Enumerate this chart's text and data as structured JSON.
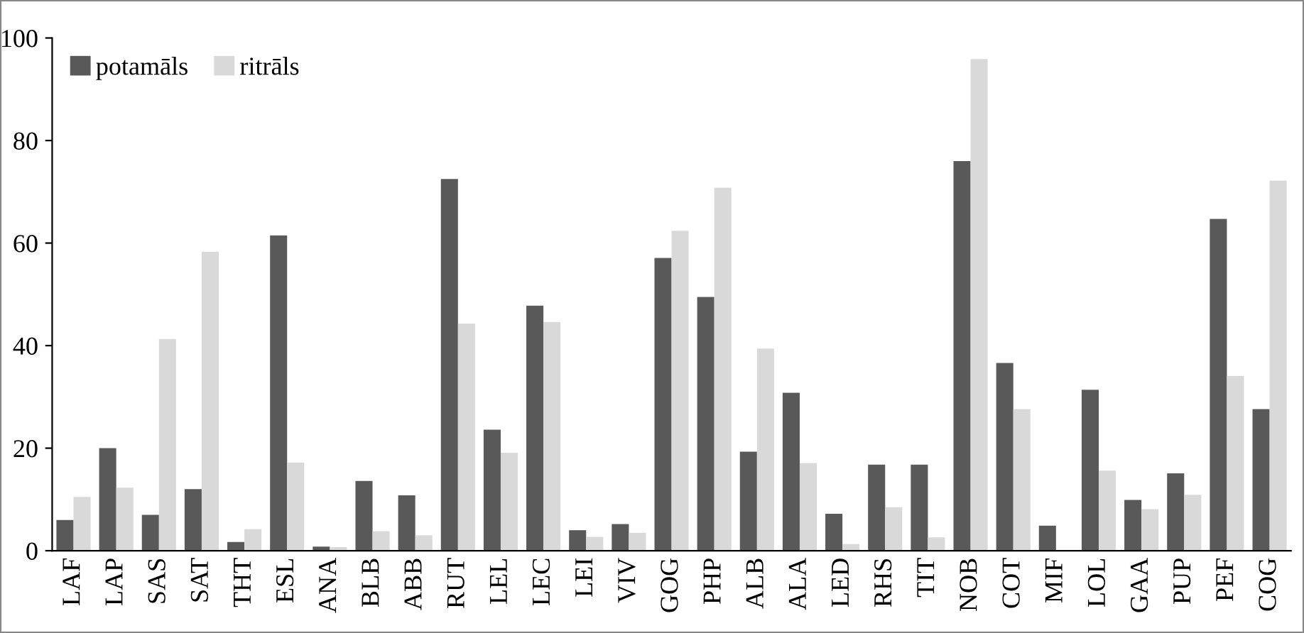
{
  "chart_data": {
    "type": "bar",
    "categories": [
      "LAF",
      "LAP",
      "SAS",
      "SAT",
      "THT",
      "ESL",
      "ANA",
      "BLB",
      "ABB",
      "RUT",
      "LEL",
      "LEC",
      "LEI",
      "VIV",
      "GOG",
      "PHP",
      "ALB",
      "ALA",
      "LED",
      "RHS",
      "TIT",
      "NOB",
      "COT",
      "MIF",
      "LOL",
      "GAA",
      "PUP",
      "PEF",
      "COG"
    ],
    "series": [
      {
        "name": "potamāls",
        "color": "#595959",
        "values": [
          6,
          20,
          7,
          12,
          1.7,
          61.5,
          0.8,
          13.6,
          10.8,
          72.5,
          23.6,
          47.8,
          4,
          5.2,
          57.1,
          49.5,
          19.3,
          30.8,
          7.2,
          16.8,
          16.8,
          76,
          36.6,
          4.9,
          31.4,
          9.9,
          15.1,
          64.7,
          27.6
        ]
      },
      {
        "name": "ritrāls",
        "color": "#d9d9d9",
        "values": [
          10.5,
          12.3,
          41.3,
          58.3,
          4.2,
          17.2,
          0.7,
          3.8,
          3,
          44.3,
          19.1,
          44.6,
          2.7,
          3.5,
          62.4,
          70.8,
          39.4,
          17.1,
          1.3,
          8.5,
          2.6,
          95.9,
          27.6,
          0,
          15.6,
          8.1,
          10.9,
          34.1,
          72.2
        ]
      }
    ],
    "ylim": [
      0,
      100
    ],
    "yticks": [
      0,
      20,
      40,
      60,
      80,
      100
    ],
    "grid": false,
    "legend": "top left"
  }
}
